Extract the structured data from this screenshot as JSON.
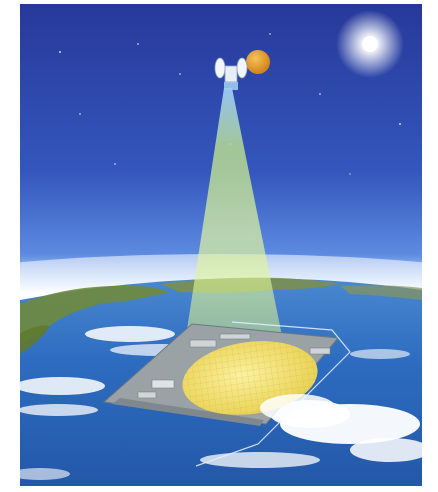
{
  "scene": {
    "sky_top": "#2a3f9a",
    "sky_mid": "#3c66c8",
    "horizon_glow": "#e4f0ff",
    "ocean": "#2b6fc4",
    "beam": "#d8f08a",
    "rectenna": "#f2e068",
    "sun": "#ffffff",
    "moon": "#e8a028"
  }
}
